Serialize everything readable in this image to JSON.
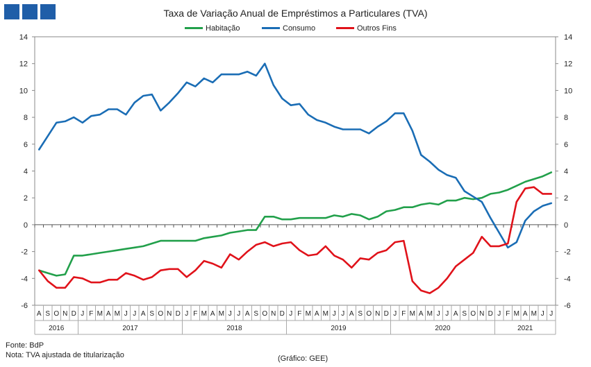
{
  "header": {
    "title": "Taxa de Variação Anual de Empréstimos  a Particulares (TVA)"
  },
  "colors": {
    "Habitação": "#22a04b",
    "Consumo": "#1a6db5",
    "Outros Fins": "#e0121a",
    "logo": "#1f5ea8"
  },
  "chart_data": {
    "type": "line",
    "title": "Taxa de Variação Anual de Empréstimos  a Particulares (TVA)",
    "xlabel": "",
    "ylabel": "",
    "ylim": [
      -6,
      14
    ],
    "yticks": [
      -6,
      -4,
      -2,
      0,
      2,
      4,
      6,
      8,
      10,
      12,
      14
    ],
    "grid": false,
    "legend_position": "top",
    "categories": [
      "A",
      "S",
      "O",
      "N",
      "D",
      "J",
      "F",
      "M",
      "A",
      "M",
      "J",
      "J",
      "A",
      "S",
      "O",
      "N",
      "D",
      "J",
      "F",
      "M",
      "A",
      "M",
      "J",
      "J",
      "A",
      "S",
      "O",
      "N",
      "D",
      "J",
      "F",
      "M",
      "A",
      "M",
      "J",
      "J",
      "A",
      "S",
      "O",
      "N",
      "D",
      "J",
      "F",
      "M",
      "A",
      "M",
      "J",
      "J",
      "A",
      "S",
      "O",
      "N",
      "D",
      "J",
      "F",
      "M",
      "A",
      "M",
      "J",
      "J"
    ],
    "year_labels": [
      {
        "label": "2016",
        "start": 0,
        "end": 4
      },
      {
        "label": "2017",
        "start": 5,
        "end": 16
      },
      {
        "label": "2018",
        "start": 17,
        "end": 28
      },
      {
        "label": "2019",
        "start": 29,
        "end": 40
      },
      {
        "label": "2020",
        "start": 41,
        "end": 52
      },
      {
        "label": "2021",
        "start": 53,
        "end": 59
      }
    ],
    "series": [
      {
        "name": "Habitação",
        "values": [
          -3.4,
          -3.6,
          -3.8,
          -3.7,
          -2.3,
          -2.3,
          -2.2,
          -2.1,
          -2.0,
          -1.9,
          -1.8,
          -1.7,
          -1.6,
          -1.4,
          -1.2,
          -1.2,
          -1.2,
          -1.2,
          -1.2,
          -1.0,
          -0.9,
          -0.8,
          -0.6,
          -0.5,
          -0.4,
          -0.4,
          0.6,
          0.6,
          0.4,
          0.4,
          0.5,
          0.5,
          0.5,
          0.5,
          0.7,
          0.6,
          0.8,
          0.7,
          0.4,
          0.6,
          1.0,
          1.1,
          1.3,
          1.3,
          1.5,
          1.6,
          1.5,
          1.8,
          1.8,
          2.0,
          1.9,
          2.0,
          2.3,
          2.4,
          2.6,
          2.9,
          3.2,
          3.4,
          3.6,
          3.9
        ]
      },
      {
        "name": "Consumo",
        "values": [
          5.6,
          6.6,
          7.6,
          7.7,
          8.0,
          7.6,
          8.1,
          8.2,
          8.6,
          8.6,
          8.2,
          9.1,
          9.6,
          9.7,
          8.5,
          9.1,
          9.8,
          10.6,
          10.3,
          10.9,
          10.6,
          11.2,
          11.2,
          11.2,
          11.4,
          11.1,
          12.0,
          10.4,
          9.4,
          8.9,
          9.0,
          8.2,
          7.8,
          7.6,
          7.3,
          7.1,
          7.1,
          7.1,
          6.8,
          7.3,
          7.7,
          8.3,
          8.3,
          7.0,
          5.2,
          4.7,
          4.1,
          3.7,
          3.5,
          2.5,
          2.1,
          1.7,
          0.5,
          -0.6,
          -1.7,
          -1.3,
          0.3,
          1.0,
          1.4,
          1.6
        ]
      },
      {
        "name": "Outros Fins",
        "values": [
          -3.4,
          -4.2,
          -4.7,
          -4.7,
          -3.9,
          -4.0,
          -4.3,
          -4.3,
          -4.1,
          -4.1,
          -3.6,
          -3.8,
          -4.1,
          -3.9,
          -3.4,
          -3.3,
          -3.3,
          -3.9,
          -3.4,
          -2.7,
          -2.9,
          -3.2,
          -2.2,
          -2.6,
          -2.0,
          -1.5,
          -1.3,
          -1.6,
          -1.4,
          -1.3,
          -1.9,
          -2.3,
          -2.2,
          -1.6,
          -2.3,
          -2.6,
          -3.2,
          -2.5,
          -2.6,
          -2.1,
          -1.9,
          -1.3,
          -1.2,
          -4.2,
          -4.9,
          -5.1,
          -4.7,
          -4.0,
          -3.1,
          -2.6,
          -2.1,
          -0.9,
          -1.6,
          -1.6,
          -1.4,
          1.7,
          2.7,
          2.8,
          2.3,
          2.3
        ]
      }
    ]
  },
  "footer": {
    "source": "Fonte: BdP",
    "note": "Nota: TVA  ajustada de titularização",
    "credit": "(Gráfico: GEE)"
  }
}
